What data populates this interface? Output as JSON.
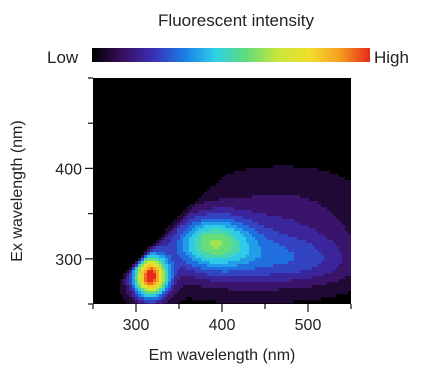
{
  "chart_data": {
    "type": "heatmap",
    "title": "Fluorescent intensity",
    "colorbar": {
      "low_label": "Low",
      "high_label": "High",
      "colors": [
        "#000000",
        "#3a1060",
        "#3b2fb5",
        "#1a7ee8",
        "#2fd0e8",
        "#5fdc7a",
        "#c8e63c",
        "#f0e030",
        "#f7a020",
        "#e82a1a"
      ]
    },
    "background_color": "#000000",
    "xlabel": "Em wavelength (nm)",
    "ylabel": "Ex wavelength (nm)",
    "xlim": [
      250,
      550
    ],
    "ylim": [
      250,
      500
    ],
    "xticks": [
      300,
      400,
      500
    ],
    "yticks": [
      300,
      400
    ],
    "grid": false,
    "contour_peaks": [
      {
        "em": 317,
        "ex": 280,
        "intensity": 1.0,
        "em_spread": 14,
        "ex_spread": 16
      },
      {
        "em": 388,
        "ex": 320,
        "intensity": 0.42,
        "em_spread": 30,
        "ex_spread": 20
      },
      {
        "em": 430,
        "ex": 300,
        "intensity": 0.22,
        "em_spread": 70,
        "ex_spread": 24
      },
      {
        "em": 470,
        "ex": 345,
        "intensity": 0.12,
        "em_spread": 70,
        "ex_spread": 35
      },
      {
        "em": 510,
        "ex": 295,
        "intensity": 0.08,
        "em_spread": 45,
        "ex_spread": 18
      }
    ]
  }
}
